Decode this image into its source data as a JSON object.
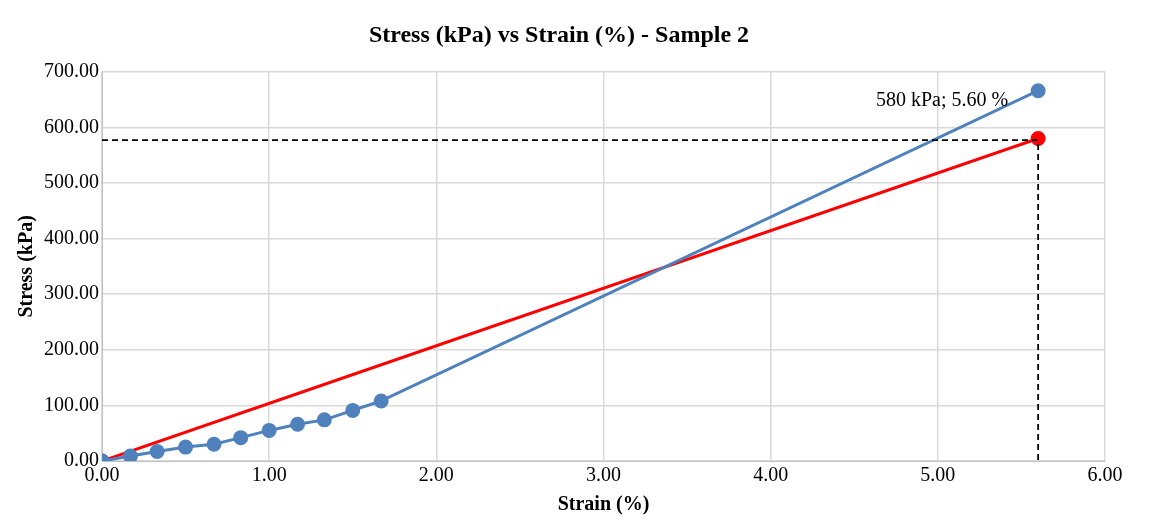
{
  "chart_data": {
    "type": "line",
    "title": "Stress (kPa) vs Strain (%) - Sample 2",
    "xlabel": "Strain (%)",
    "ylabel": "Stress (kPa)",
    "xlim": [
      0,
      6
    ],
    "xticks": [
      {
        "value": 0,
        "label": "0.00"
      },
      {
        "value": 1,
        "label": "1.00"
      },
      {
        "value": 2,
        "label": "2.00"
      },
      {
        "value": 3,
        "label": "3.00"
      },
      {
        "value": 4,
        "label": "4.00"
      },
      {
        "value": 5,
        "label": "5.00"
      },
      {
        "value": 6,
        "label": "6.00"
      }
    ],
    "ylim": [
      0,
      700
    ],
    "yticks": [
      {
        "value": 0,
        "label": "0.00"
      },
      {
        "value": 100,
        "label": "100.00"
      },
      {
        "value": 200,
        "label": "200.00"
      },
      {
        "value": 300,
        "label": "300.00"
      },
      {
        "value": 400,
        "label": "400.00"
      },
      {
        "value": 500,
        "label": "500.00"
      },
      {
        "value": 600,
        "label": "600.00"
      },
      {
        "value": 700,
        "label": "700.00"
      }
    ],
    "grid": true,
    "legend": false,
    "series": [
      {
        "color": "#000000",
        "x": [
          0,
          5.6,
          5.6
        ],
        "values": [
          577,
          577,
          0
        ],
        "line_style": "dashed",
        "marker": "none"
      },
      {
        "color": "#4f81bd",
        "x": [
          0,
          0.17,
          0.33,
          0.5,
          0.67,
          0.83,
          1.0,
          1.17,
          1.33,
          1.5,
          1.67,
          5.6
        ],
        "values": [
          0,
          9,
          17,
          25,
          30,
          42,
          55,
          66,
          74,
          91,
          108,
          666
        ],
        "marker": "circle",
        "line_style": "solid"
      },
      {
        "color": "#ff0000",
        "x": [
          0,
          5.6
        ],
        "values": [
          0,
          580
        ],
        "marker": "circle",
        "line_style": "solid"
      }
    ],
    "annotations": [
      {
        "text": "580 kPa; 5.60 %",
        "x": 5.6,
        "y": 580
      }
    ]
  }
}
